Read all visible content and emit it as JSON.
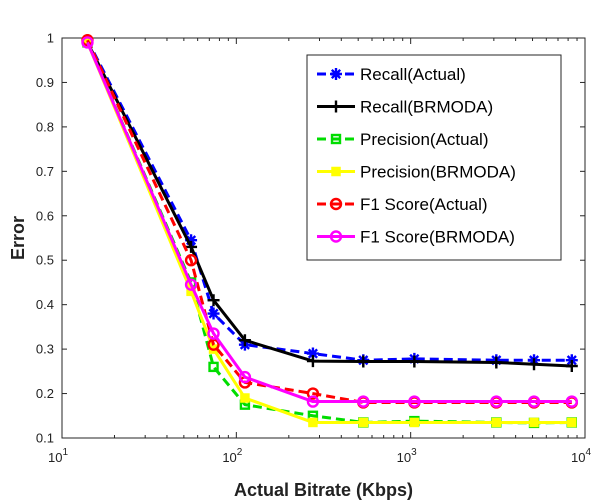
{
  "chart_data": {
    "type": "line",
    "title": "",
    "xlabel": "Actual Bitrate (Kbps)",
    "ylabel": "Error",
    "xscale": "log",
    "xlim": [
      10,
      10000
    ],
    "ylim": [
      0.1,
      1.0
    ],
    "x_ticks": [
      10,
      100,
      1000,
      10000
    ],
    "x_tick_labels": [
      {
        "base": "10",
        "exp": "1"
      },
      {
        "base": "10",
        "exp": "2"
      },
      {
        "base": "10",
        "exp": "3"
      },
      {
        "base": "10",
        "exp": "4"
      }
    ],
    "y_ticks": [
      0.1,
      0.2,
      0.3,
      0.4,
      0.5,
      0.6,
      0.7,
      0.8,
      0.9,
      1.0
    ],
    "y_tick_labels": [
      "0.1",
      "0.2",
      "0.3",
      "0.4",
      "0.5",
      "0.6",
      "0.7",
      "0.8",
      "0.9",
      "1"
    ],
    "grid": false,
    "legend_position": "top-right",
    "x": [
      14,
      55,
      74,
      112,
      275,
      535,
      1050,
      3100,
      5100,
      8400
    ],
    "series": [
      {
        "name": "Recall(Actual)",
        "color": "#0000ff",
        "dash": "dashed",
        "marker": "asterisk",
        "values": [
          0.995,
          0.545,
          0.38,
          0.31,
          0.29,
          0.275,
          0.278,
          0.275,
          0.275,
          0.275
        ]
      },
      {
        "name": "Recall(BRMODA)",
        "color": "#000000",
        "dash": "solid",
        "marker": "plus",
        "values": [
          0.99,
          0.53,
          0.41,
          0.32,
          0.273,
          0.272,
          0.272,
          0.27,
          0.266,
          0.262
        ]
      },
      {
        "name": "Precision(Actual)",
        "color": "#00dd00",
        "dash": "dashed",
        "marker": "square",
        "values": [
          0.99,
          0.45,
          0.26,
          0.175,
          0.15,
          0.135,
          0.138,
          0.135,
          0.134,
          0.135
        ]
      },
      {
        "name": "Precision(BRMODA)",
        "color": "#ffff00",
        "dash": "solid",
        "marker": "filled-square",
        "values": [
          0.99,
          0.43,
          0.3,
          0.19,
          0.135,
          0.135,
          0.135,
          0.135,
          0.135,
          0.135
        ]
      },
      {
        "name": "F1 Score(Actual)",
        "color": "#ff0000",
        "dash": "dashed",
        "marker": "circle",
        "values": [
          0.995,
          0.5,
          0.31,
          0.225,
          0.2,
          0.18,
          0.18,
          0.18,
          0.18,
          0.18
        ]
      },
      {
        "name": "F1 Score(BRMODA)",
        "color": "#ff00ff",
        "dash": "solid",
        "marker": "circle",
        "values": [
          0.99,
          0.445,
          0.335,
          0.237,
          0.182,
          0.182,
          0.182,
          0.182,
          0.182,
          0.182
        ]
      }
    ]
  }
}
